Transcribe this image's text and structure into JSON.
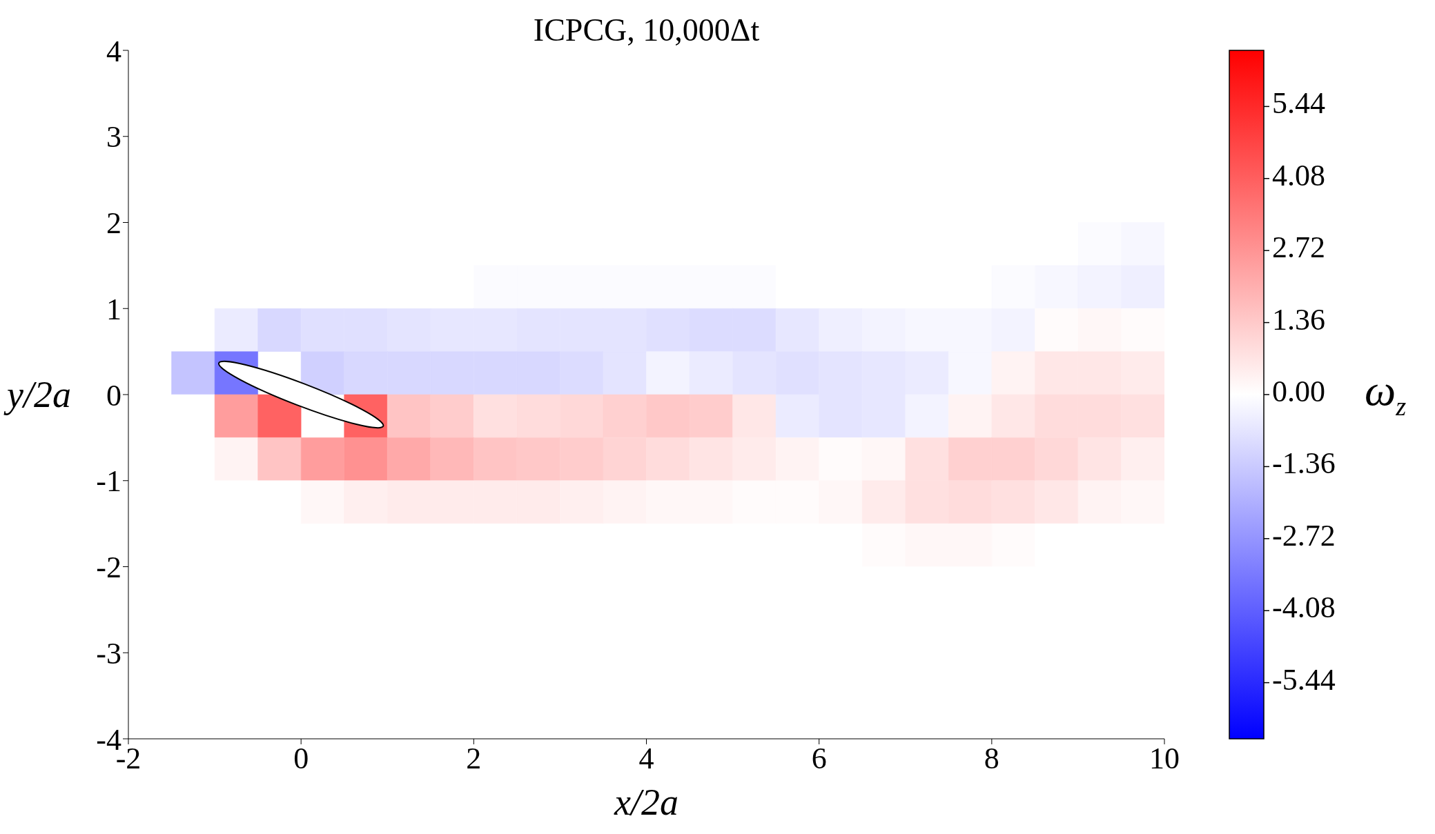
{
  "chart_data": {
    "type": "heatmap",
    "title": "ICPCG, 10,000Δt",
    "xlabel": "x/2a",
    "ylabel": "y/2a",
    "clabel": "ω$_{z}$",
    "xlim": [
      -2,
      10
    ],
    "ylim": [
      -4,
      4
    ],
    "xticks": [
      -2,
      0,
      2,
      4,
      6,
      8,
      10
    ],
    "yticks": [
      -4,
      -3,
      -2,
      -1,
      0,
      1,
      2,
      3,
      4
    ],
    "clim": [
      -6.5,
      6.5
    ],
    "cticks": [
      -5.44,
      -4.08,
      -2.72,
      -1.36,
      {
        "value": 0,
        "label": "0.00"
      },
      1.36,
      2.72,
      4.08,
      5.44
    ],
    "colors": [
      "#0000ff",
      "#ffffff",
      "#ff0000"
    ],
    "cells": [
      [
        0,
        0,
        0,
        0,
        0,
        0,
        0,
        0,
        0,
        0,
        0,
        0,
        0,
        0,
        0,
        0,
        0,
        0,
        0,
        0,
        0,
        0,
        0,
        0
      ],
      [
        0,
        0,
        0,
        0,
        0,
        0,
        0,
        0,
        0,
        0,
        0,
        0,
        0,
        0,
        0,
        0,
        0,
        0,
        0,
        0,
        0,
        0,
        0,
        0
      ],
      [
        0,
        0,
        0,
        0,
        0,
        0,
        0,
        0,
        0,
        0,
        0,
        0,
        0,
        0,
        0,
        0,
        0,
        0,
        0,
        0,
        0,
        0,
        0,
        0
      ],
      [
        0,
        0,
        0,
        0,
        0,
        0,
        0,
        0,
        0,
        0,
        0,
        0,
        0,
        0,
        0,
        0,
        0,
        0,
        0,
        0,
        0,
        0,
        0,
        0
      ],
      [
        0,
        0,
        0,
        0,
        0,
        0,
        0,
        0,
        0,
        0,
        0,
        0,
        0,
        0,
        0,
        0,
        0,
        0,
        0,
        0,
        0,
        0,
        -0.1,
        -0.2
      ],
      [
        0,
        0,
        0,
        0,
        0,
        0,
        0,
        0,
        -0.1,
        -0.1,
        -0.1,
        -0.1,
        -0.1,
        -0.1,
        -0.1,
        0,
        0,
        0,
        0,
        0,
        -0.1,
        -0.2,
        -0.3,
        -0.4
      ],
      [
        0,
        0,
        -0.5,
        -1.0,
        -0.8,
        -0.8,
        -0.7,
        -0.6,
        -0.6,
        -0.7,
        -0.7,
        -0.7,
        -0.8,
        -0.9,
        -0.9,
        -0.6,
        -0.4,
        -0.3,
        -0.2,
        -0.2,
        -0.3,
        0.1,
        0.2,
        0.1
      ],
      [
        0,
        -1.5,
        -3.5,
        null,
        -1.2,
        -1.0,
        -1.0,
        -1.0,
        -1.0,
        -1.0,
        -0.9,
        -0.7,
        -0.3,
        -0.5,
        -0.7,
        -0.8,
        -0.7,
        -0.6,
        -0.5,
        -0.2,
        0.3,
        0.6,
        0.6,
        0.5
      ],
      [
        0,
        0,
        2.5,
        4.0,
        null,
        4.0,
        1.5,
        1.3,
        0.8,
        0.9,
        1.0,
        1.2,
        1.4,
        1.3,
        0.6,
        -0.5,
        -0.7,
        -0.6,
        -0.3,
        0.3,
        0.6,
        0.9,
        0.9,
        0.8
      ],
      [
        0,
        0,
        0.3,
        1.5,
        2.5,
        2.8,
        2.2,
        1.8,
        1.5,
        1.4,
        1.3,
        1.1,
        0.9,
        0.7,
        0.5,
        0.3,
        0.1,
        0.2,
        0.8,
        1.2,
        1.2,
        1.0,
        0.7,
        0.4
      ],
      [
        0,
        0,
        0,
        0,
        0.2,
        0.4,
        0.5,
        0.5,
        0.5,
        0.5,
        0.4,
        0.3,
        0.2,
        0.2,
        0.1,
        0.1,
        0.2,
        0.5,
        0.8,
        0.9,
        0.8,
        0.6,
        0.3,
        0.2
      ],
      [
        0,
        0,
        0,
        0,
        0,
        0,
        0,
        0,
        0,
        0,
        0,
        0,
        0,
        0,
        0,
        0,
        0,
        0.1,
        0.2,
        0.2,
        0.1,
        0,
        0,
        0
      ],
      [
        0,
        0,
        0,
        0,
        0,
        0,
        0,
        0,
        0,
        0,
        0,
        0,
        0,
        0,
        0,
        0,
        0,
        0,
        0,
        0,
        0,
        0,
        0,
        0
      ],
      [
        0,
        0,
        0,
        0,
        0,
        0,
        0,
        0,
        0,
        0,
        0,
        0,
        0,
        0,
        0,
        0,
        0,
        0,
        0,
        0,
        0,
        0,
        0,
        0
      ],
      [
        0,
        0,
        0,
        0,
        0,
        0,
        0,
        0,
        0,
        0,
        0,
        0,
        0,
        0,
        0,
        0,
        0,
        0,
        0,
        0,
        0,
        0,
        0,
        0
      ],
      [
        0,
        0,
        0,
        0,
        0,
        0,
        0,
        0,
        0,
        0,
        0,
        0,
        0,
        0,
        0,
        0,
        0,
        0,
        0,
        0,
        0,
        0,
        0,
        0
      ]
    ]
  }
}
